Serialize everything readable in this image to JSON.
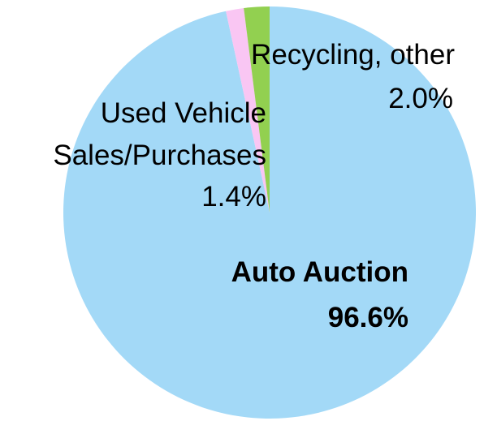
{
  "chart_data": {
    "type": "pie",
    "categories": [
      "Auto Auction",
      "Used Vehicle Sales/Purchases",
      "Recycling, other"
    ],
    "values": [
      96.6,
      1.4,
      2.0
    ],
    "value_labels": [
      "96.6%",
      "1.4%",
      "2.0%"
    ],
    "colors": [
      "#a3d9f7",
      "#f9c6f3",
      "#92d050"
    ]
  }
}
